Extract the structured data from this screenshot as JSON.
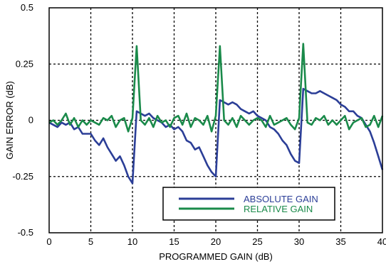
{
  "chart_data": {
    "type": "line",
    "xlabel": "PROGRAMMED GAIN (dB)",
    "ylabel": "GAIN ERROR (dB)",
    "xlim": [
      0,
      40
    ],
    "ylim": [
      -0.5,
      0.5
    ],
    "xticks": [
      0,
      5,
      10,
      15,
      20,
      25,
      30,
      35,
      40
    ],
    "yticks": [
      -0.5,
      -0.25,
      0,
      0.25,
      0.5
    ],
    "xtick_labels": [
      "0",
      "5",
      "10",
      "15",
      "20",
      "25",
      "30",
      "35",
      "40"
    ],
    "ytick_labels": [
      "-0.5",
      "-0.25",
      "0",
      "0.25",
      "0.5"
    ],
    "grid": true,
    "legend_position": "bottom-right",
    "series": [
      {
        "name": "ABSOLUTE GAIN",
        "color": "#2b3e97",
        "x": [
          0,
          0.5,
          1,
          1.5,
          2,
          2.5,
          3,
          3.5,
          4,
          4.5,
          5,
          5.5,
          6,
          6.5,
          7,
          7.5,
          8,
          8.5,
          9,
          9.5,
          10,
          10.5,
          11,
          11.5,
          12,
          12.5,
          13,
          13.5,
          14,
          14.5,
          15,
          15.5,
          16,
          16.5,
          17,
          17.5,
          18,
          18.5,
          19,
          19.5,
          20,
          20.5,
          21,
          21.5,
          22,
          22.5,
          23,
          23.5,
          24,
          24.5,
          25,
          25.5,
          26,
          26.5,
          27,
          27.5,
          28,
          28.5,
          29,
          29.5,
          30,
          30.5,
          31,
          31.5,
          32,
          32.5,
          33,
          33.5,
          34,
          34.5,
          35,
          35.5,
          36,
          36.5,
          37,
          37.5,
          38,
          38.5,
          39,
          39.5,
          40
        ],
        "values": [
          -0.01,
          -0.02,
          -0.03,
          -0.01,
          -0.02,
          -0.01,
          -0.04,
          -0.03,
          -0.06,
          -0.06,
          -0.06,
          -0.09,
          -0.11,
          -0.08,
          -0.12,
          -0.15,
          -0.18,
          -0.16,
          -0.2,
          -0.25,
          -0.28,
          0.04,
          0.03,
          0.02,
          0.03,
          0.01,
          0.0,
          -0.01,
          -0.03,
          -0.02,
          -0.04,
          -0.03,
          -0.05,
          -0.09,
          -0.1,
          -0.13,
          -0.12,
          -0.16,
          -0.2,
          -0.23,
          -0.25,
          0.09,
          0.08,
          0.07,
          0.08,
          0.07,
          0.05,
          0.04,
          0.03,
          0.04,
          0.02,
          0.01,
          0.0,
          -0.03,
          -0.04,
          -0.06,
          -0.09,
          -0.11,
          -0.15,
          -0.18,
          -0.19,
          0.14,
          0.13,
          0.12,
          0.12,
          0.13,
          0.12,
          0.11,
          0.1,
          0.09,
          0.07,
          0.06,
          0.04,
          0.04,
          0.02,
          0.01,
          -0.02,
          -0.05,
          -0.1,
          -0.16,
          -0.22
        ]
      },
      {
        "name": "RELATIVE GAIN",
        "color": "#1a8a4a",
        "x": [
          0,
          0.5,
          1,
          1.5,
          2,
          2.5,
          3,
          3.5,
          4,
          4.5,
          5,
          5.5,
          6,
          6.5,
          7,
          7.5,
          8,
          8.5,
          9,
          9.5,
          10,
          10.5,
          11,
          11.5,
          12,
          12.5,
          13,
          13.5,
          14,
          14.5,
          15,
          15.5,
          16,
          16.5,
          17,
          17.5,
          18,
          18.5,
          19,
          19.5,
          20,
          20.5,
          21,
          21.5,
          22,
          22.5,
          23,
          23.5,
          24,
          24.5,
          25,
          25.5,
          26,
          26.5,
          27,
          27.5,
          28,
          28.5,
          29,
          29.5,
          30,
          30.5,
          31,
          31.5,
          32,
          32.5,
          33,
          33.5,
          34,
          34.5,
          35,
          35.5,
          36,
          36.5,
          37,
          37.5,
          38,
          38.5,
          39,
          39.5,
          40
        ],
        "values": [
          -0.01,
          0.0,
          -0.02,
          0.0,
          0.03,
          -0.02,
          0.01,
          -0.03,
          0.0,
          -0.02,
          0.0,
          -0.01,
          -0.02,
          0.01,
          0.0,
          0.02,
          -0.03,
          0.0,
          0.01,
          -0.05,
          0.01,
          0.33,
          0.0,
          -0.02,
          0.01,
          -0.03,
          0.02,
          -0.01,
          0.0,
          -0.03,
          0.01,
          0.02,
          -0.02,
          0.03,
          -0.03,
          0.01,
          0.0,
          -0.02,
          0.02,
          -0.05,
          0.02,
          0.33,
          0.0,
          -0.02,
          0.01,
          -0.03,
          0.02,
          0.0,
          -0.02,
          0.0,
          0.01,
          0.0,
          -0.03,
          0.02,
          -0.02,
          -0.01,
          0.0,
          0.01,
          -0.02,
          -0.04,
          0.01,
          0.34,
          -0.01,
          -0.02,
          0.01,
          0.0,
          0.02,
          -0.02,
          0.0,
          -0.02,
          0.0,
          0.02,
          -0.04,
          -0.01,
          0.0,
          0.01,
          -0.03,
          -0.02,
          0.02,
          -0.03,
          0.02
        ]
      }
    ]
  }
}
